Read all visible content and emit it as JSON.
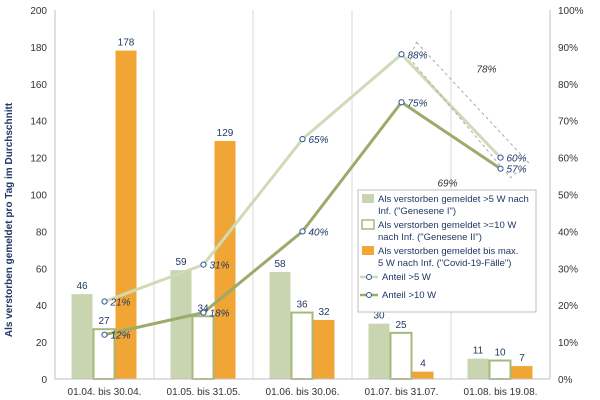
{
  "chart_data": {
    "type": "bar",
    "ylabel": "Als verstorben gemeldet pro Tag im Durchschnitt",
    "y2label": "",
    "categories": [
      "01.04. bis 30.04.",
      "01.05. bis 31.05.",
      "01.06. bis 30.06.",
      "01.07. bis 31.07.",
      "01.08. bis 19.08."
    ],
    "ylim": [
      0,
      200
    ],
    "yticks": [
      0,
      20,
      40,
      60,
      80,
      100,
      120,
      140,
      160,
      180,
      200
    ],
    "y2lim": [
      0,
      100
    ],
    "y2ticks": [
      "0%",
      "10%",
      "20%",
      "30%",
      "40%",
      "50%",
      "60%",
      "70%",
      "80%",
      "90%",
      "100%"
    ],
    "grid": "vertical",
    "legend_position": "right",
    "bar_series": [
      {
        "name": "Als verstorben gemeldet >5 W nach Inf. (\"Genesene I\")",
        "color": "#c9d4b1",
        "style": "filled",
        "values": [
          46,
          59,
          58,
          30,
          11
        ]
      },
      {
        "name": "Als verstorben gemeldet >=10 W nach Inf. (\"Genesene II\")",
        "color": "#ffffff",
        "border": "#a8b87a",
        "style": "outline",
        "values": [
          27,
          34,
          36,
          25,
          10
        ]
      },
      {
        "name": "Als verstorben gemeldet bis max. 5 W nach Inf. (\"Covid-19-Fälle\")",
        "color": "#f0a535",
        "style": "filled",
        "values": [
          178,
          129,
          32,
          4,
          7
        ]
      }
    ],
    "line_series": [
      {
        "name": "Anteil >5 W",
        "color": "#cfdbb6",
        "values": [
          21,
          31,
          65,
          88,
          60
        ],
        "labels": [
          "21%",
          "31%",
          "65%",
          "88%",
          "60%"
        ]
      },
      {
        "name": "Anteil >10 W",
        "color": "#9aab6a",
        "values": [
          12,
          18,
          40,
          75,
          57
        ],
        "labels": [
          "12%",
          "18%",
          "40%",
          "75%",
          "57%"
        ]
      }
    ],
    "annotations": [
      "78%",
      "69%"
    ]
  }
}
